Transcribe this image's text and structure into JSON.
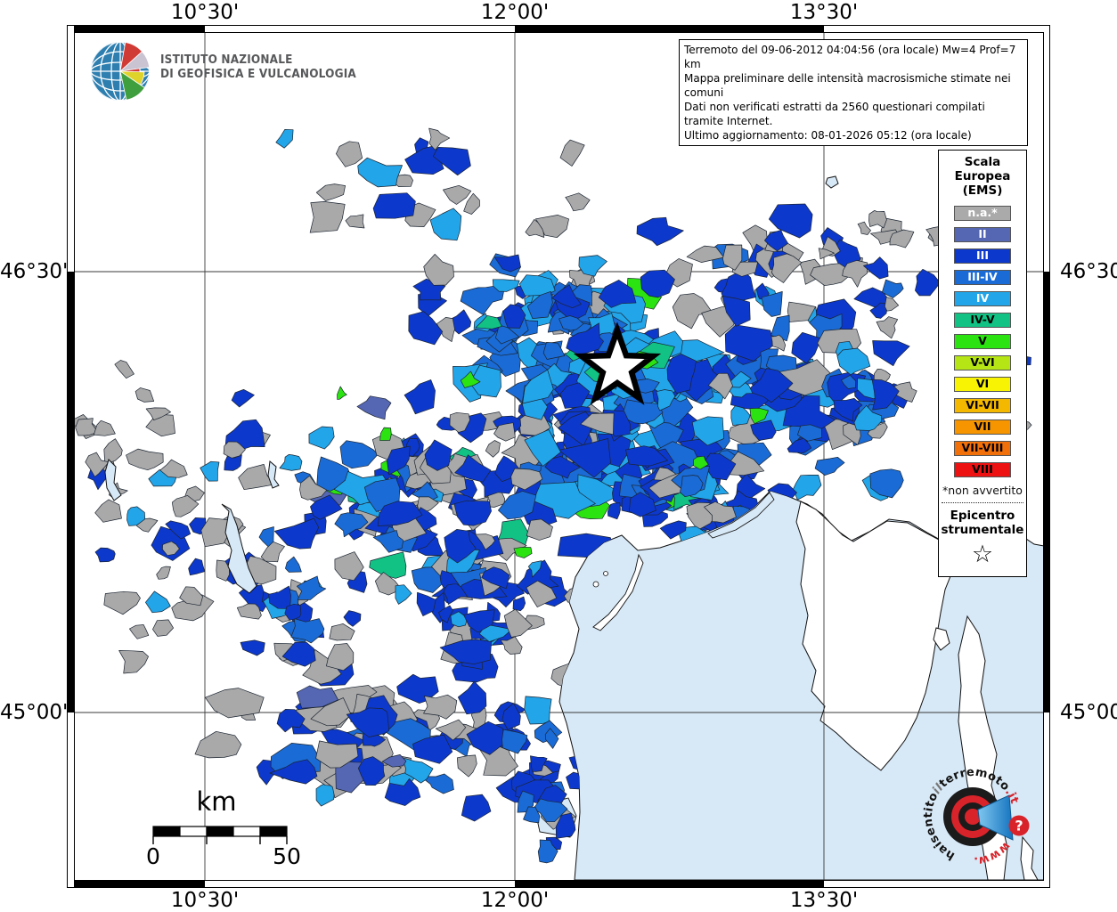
{
  "branding": {
    "institute_line1": "ISTITUTO NAZIONALE",
    "institute_line2": "DI GEOFISICA E VULCANOLOGIA"
  },
  "info_box": {
    "lines": [
      "Terremoto del 09-06-2012 04:04:56 (ora locale) Mw=4 Prof=7 km",
      "Mappa preliminare delle intensità macrosismiche stimate nei comuni",
      "Dati non verificati estratti da 2560 questionari compilati tramite Internet.",
      "Ultimo aggiornamento: 08-01-2026 05:12 (ora locale)"
    ]
  },
  "axes": {
    "top": [
      "10°30'",
      "12°00'",
      "13°30'"
    ],
    "bottom": [
      "10°30'",
      "12°00'",
      "13°30'"
    ],
    "left": [
      "46°30'",
      "45°00'"
    ],
    "right": [
      "46°30'",
      "45°00'"
    ]
  },
  "legend": {
    "title_lines": [
      "Scala",
      "Europea",
      "(EMS)"
    ],
    "items": [
      {
        "label": "n.a.*",
        "color": "#aaaaaa",
        "text": "#ffffff"
      },
      {
        "label": "II",
        "color": "#5566b2",
        "text": "#ffffff"
      },
      {
        "label": "III",
        "color": "#0d38cc",
        "text": "#ffffff"
      },
      {
        "label": "III-IV",
        "color": "#1a6bd5",
        "text": "#ffffff"
      },
      {
        "label": "IV",
        "color": "#22a5e9",
        "text": "#ffffff"
      },
      {
        "label": "IV-V",
        "color": "#12c285",
        "text": "#000000"
      },
      {
        "label": "V",
        "color": "#2ce312",
        "text": "#000000"
      },
      {
        "label": "V-VI",
        "color": "#b5e514",
        "text": "#000000"
      },
      {
        "label": "VI",
        "color": "#f8f203",
        "text": "#000000"
      },
      {
        "label": "VI-VII",
        "color": "#f4b800",
        "text": "#000000"
      },
      {
        "label": "VII",
        "color": "#f79500",
        "text": "#000000"
      },
      {
        "label": "VII-VIII",
        "color": "#f2700a",
        "text": "#000000"
      },
      {
        "label": "VIII",
        "color": "#ee1111",
        "text": "#000000"
      }
    ],
    "footnote": "*non avvertito",
    "epicenter_line1": "Epicentro",
    "epicenter_line2": "strumentale",
    "epicenter_symbol": "☆"
  },
  "scalebar": {
    "unit": "km",
    "start_label": "0",
    "end_label": "50"
  },
  "watermark": {
    "prefix": "www.",
    "word1": "haisentito",
    "word2": "il",
    "word3": "terremoto",
    "tld": ".it",
    "question": "?"
  },
  "map_colors": {
    "sea": "#d7e8f6",
    "grid": "#3a3a3a",
    "na": "#a9a9a9",
    "II": "#5566b2",
    "III": "#0d38cc",
    "III_IV": "#1a6bd5",
    "IV": "#22a5e9",
    "IV_V": "#12c285",
    "V": "#2ce312"
  }
}
